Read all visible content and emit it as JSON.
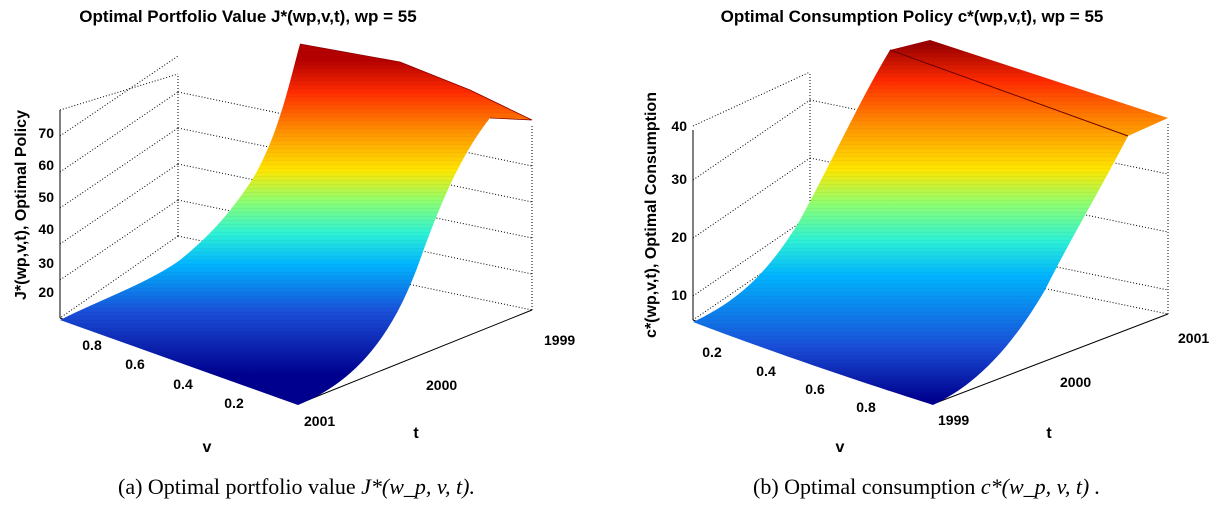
{
  "chart_data": [
    {
      "type": "surface",
      "title": "Optimal Portfolio Value J*(wp,v,t), wp = 55",
      "xlabel": "v",
      "ylabel": "t",
      "zlabel": "J*(wp,v,t), Optimal Policy",
      "colormap": "jet",
      "v_ticks": [
        "0.8",
        "0.6",
        "0.4",
        "0.2"
      ],
      "t_ticks": [
        "1999",
        "2000",
        "2001"
      ],
      "z_ticks": [
        "20",
        "30",
        "40",
        "50",
        "60",
        "70"
      ],
      "v_range": [
        0,
        1
      ],
      "t_range": [
        1999,
        2001
      ],
      "zlim": [
        12,
        82
      ],
      "grid": true,
      "v_values": [
        0.0,
        0.1,
        0.2,
        0.3,
        0.4,
        0.5,
        0.6,
        0.7,
        0.8,
        0.9,
        1.0
      ],
      "t_values": [
        1999,
        2000,
        2001
      ],
      "z_values": [
        [
          76,
          76,
          76,
          76,
          76,
          76,
          76,
          76,
          76,
          76,
          76
        ],
        [
          70,
          61,
          48,
          35,
          25,
          21,
          19,
          17,
          16,
          15,
          14
        ],
        [
          70,
          62,
          49,
          36,
          26,
          21,
          19,
          17,
          16,
          15,
          14
        ]
      ]
    },
    {
      "type": "surface",
      "title": "Optimal Consumption Policy c*(wp,v,t), wp = 55",
      "xlabel": "v",
      "ylabel": "t",
      "zlabel": "c*(wp,v,t), Optimal Consumption",
      "colormap": "jet",
      "v_ticks": [
        "0.2",
        "0.4",
        "0.6",
        "0.8"
      ],
      "t_ticks": [
        "1999",
        "2000",
        "2001"
      ],
      "z_ticks": [
        "10",
        "20",
        "30",
        "40"
      ],
      "v_range": [
        0,
        1
      ],
      "t_range": [
        1999,
        2001
      ],
      "zlim": [
        5,
        50
      ],
      "grid": true,
      "v_values": [
        0.0,
        0.1,
        0.2,
        0.3,
        0.4,
        0.5,
        0.6,
        0.7,
        0.8,
        0.9,
        1.0
      ],
      "t_values": [
        1999,
        2000,
        2001
      ],
      "z_values": [
        [
          5,
          8,
          12,
          17,
          24,
          31,
          38,
          44,
          49,
          51,
          51
        ],
        [
          5,
          8,
          12,
          17,
          24,
          31,
          38,
          44,
          49,
          51,
          51
        ],
        [
          5,
          8,
          12,
          17,
          24,
          31,
          38,
          44,
          49,
          51,
          51
        ]
      ]
    }
  ],
  "captions": {
    "a_label": "(a)  Optimal portfolio value",
    "a_math": "J*(w_p, v, t).",
    "b_label": "(b)  Optimal consumption",
    "b_math": "c*(w_p, v, t) ."
  }
}
